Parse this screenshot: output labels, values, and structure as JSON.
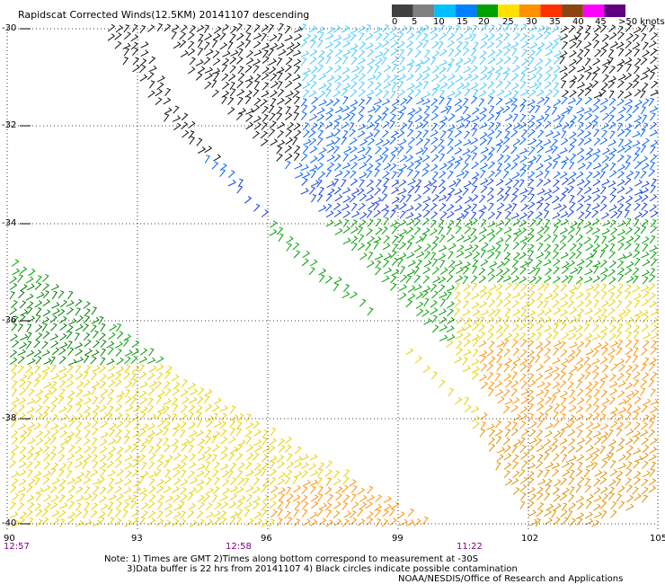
{
  "title": "Rapidscat Corrected Winds(12.5KM) 20141107 descending",
  "legend": {
    "labels": [
      "0",
      "5",
      "10",
      "15",
      "20",
      "25",
      "30",
      "35",
      "40",
      "45",
      ">50 knots"
    ],
    "colors": [
      "#404040",
      "#808080",
      "#00c0ff",
      "#0080ff",
      "#00a000",
      "#ffe000",
      "#ff9000",
      "#ff3000",
      "#8b4513",
      "#ff00ff",
      "#600080"
    ]
  },
  "axes": {
    "lat_labels": [
      "-30",
      "-32",
      "-34",
      "-36",
      "-38",
      "-40"
    ],
    "lon_labels": [
      "90",
      "93",
      "96",
      "99",
      "102",
      "105"
    ]
  },
  "times": [
    "12:57",
    "12:58",
    "11:22"
  ],
  "notes": {
    "line1": "Note: 1) Times are GMT 2)Times along bottom correspond to measurement at -30S",
    "line2": "3)Data buffer is 22 hrs from 20141107 4) Black circles indicate possible contamination",
    "credit": "NOAA/NESDIS/Office of Research and Applications"
  }
}
